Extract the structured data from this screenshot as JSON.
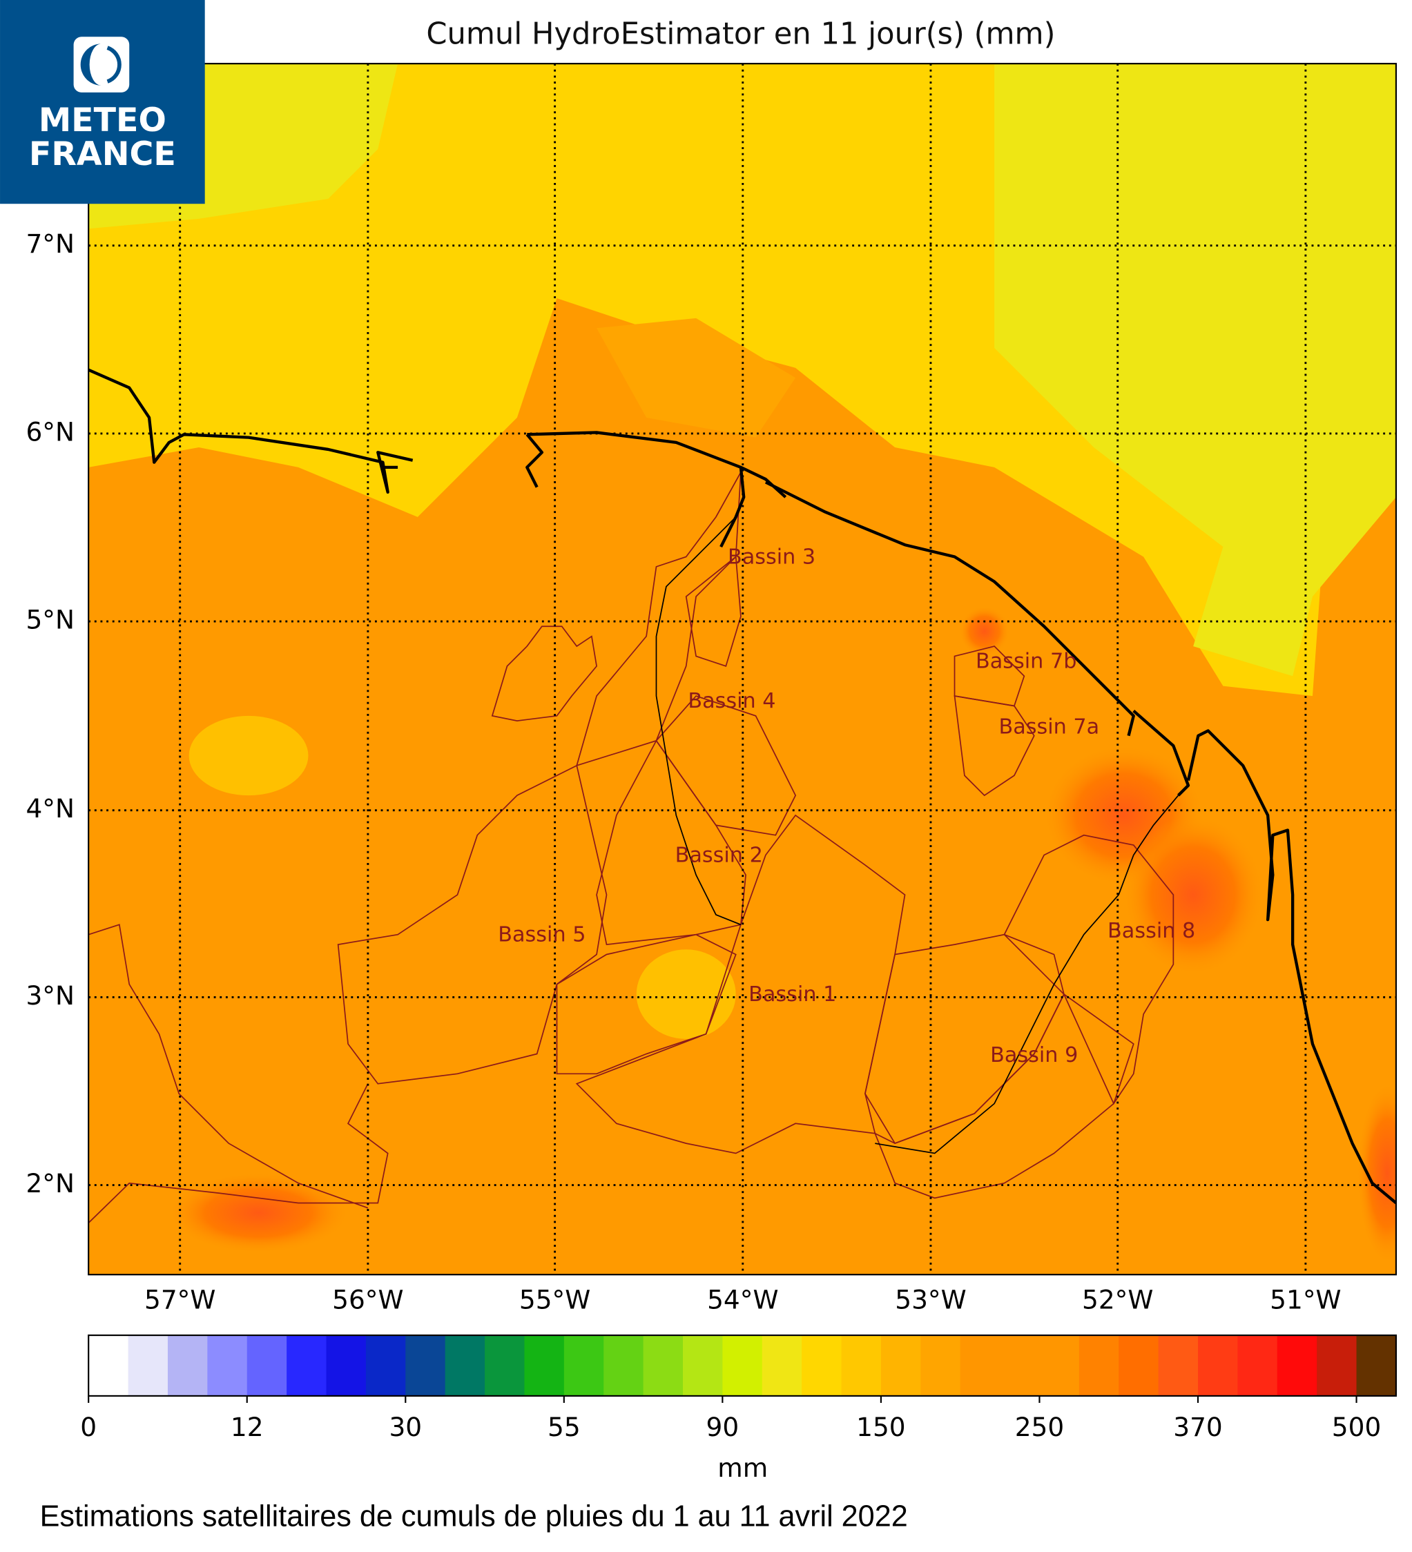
{
  "logo": {
    "line1": "METEO",
    "line2": "FRANCE"
  },
  "title": "Cumul HydroEstimator en 11 jour(s) (mm)",
  "map": {
    "lat_labels": [
      "7°N",
      "6°N",
      "5°N",
      "4°N",
      "3°N",
      "2°N"
    ],
    "lon_labels": [
      "57°W",
      "56°W",
      "55°W",
      "54°W",
      "53°W",
      "52°W",
      "51°W"
    ],
    "basins": [
      "Bassin 3",
      "Bassin 4",
      "Bassin 7b",
      "Bassin 7a",
      "Bassin 2",
      "Bassin 5",
      "Bassin 8",
      "Bassin 1",
      "Bassin 9"
    ]
  },
  "colorbar": {
    "colors": [
      "#ffffff",
      "#e6e6fa",
      "#b4b4f5",
      "#8c8cff",
      "#6464ff",
      "#2828ff",
      "#1414e6",
      "#0a28c8",
      "#0a4696",
      "#007864",
      "#0a963c",
      "#14b414",
      "#3cc814",
      "#64d214",
      "#8cdc14",
      "#b4e614",
      "#d2f000",
      "#f0e614",
      "#ffd700",
      "#ffc800",
      "#ffb400",
      "#ffa500",
      "#ff9600",
      "#ff9600",
      "#ff9600",
      "#ff8200",
      "#ff6e00",
      "#ff5a14",
      "#ff3c14",
      "#ff2814",
      "#ff0a0a",
      "#c81e0a",
      "#643200"
    ],
    "ticks": [
      0,
      12,
      30,
      55,
      90,
      150,
      250,
      370,
      500
    ],
    "label": "mm"
  },
  "footer": "Estimations satellitaires de cumuls de pluies du 1 au 11 avril 2022"
}
